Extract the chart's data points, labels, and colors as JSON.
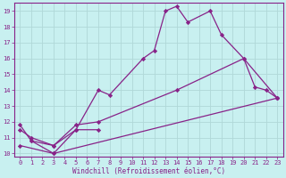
{
  "xlabel": "Windchill (Refroidissement éolien,°C)",
  "background_color": "#c8f0f0",
  "grid_color": "#b0d8d8",
  "line_color": "#882288",
  "xlim": [
    -0.5,
    23.5
  ],
  "ylim": [
    9.8,
    19.5
  ],
  "xticks": [
    0,
    1,
    2,
    3,
    4,
    5,
    6,
    7,
    8,
    9,
    10,
    11,
    12,
    13,
    14,
    15,
    16,
    17,
    18,
    19,
    20,
    21,
    22,
    23
  ],
  "yticks": [
    10,
    11,
    12,
    13,
    14,
    15,
    16,
    17,
    18,
    19
  ],
  "series1_x": [
    0,
    1,
    3,
    5,
    7,
    8,
    11,
    12,
    13,
    14,
    15,
    17,
    18,
    20,
    21,
    22,
    23
  ],
  "series1_y": [
    11.8,
    10.8,
    10.5,
    11.5,
    14.0,
    13.7,
    16.0,
    16.5,
    19.0,
    19.3,
    18.3,
    19.0,
    17.5,
    16.0,
    14.2,
    14.0,
    13.5
  ],
  "series2_x": [
    1,
    3,
    5,
    7
  ],
  "series2_y": [
    10.8,
    10.0,
    11.5,
    11.5
  ],
  "series3_x": [
    0,
    1,
    3,
    5,
    7,
    14,
    20,
    23
  ],
  "series3_y": [
    11.5,
    11.0,
    10.5,
    11.8,
    12.0,
    14.0,
    16.0,
    13.5
  ],
  "series4_x": [
    0,
    3,
    23
  ],
  "series4_y": [
    10.5,
    10.0,
    13.5
  ],
  "figsize": [
    3.2,
    2.0
  ],
  "dpi": 100
}
